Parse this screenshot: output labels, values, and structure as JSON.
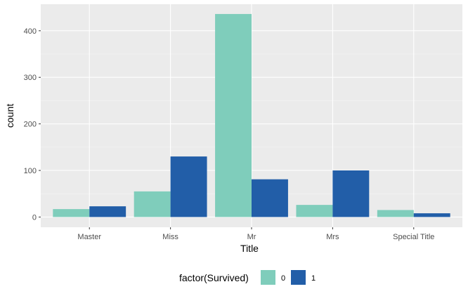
{
  "chart_data": {
    "type": "bar",
    "title": "",
    "xlabel": "Title",
    "ylabel": "count",
    "categories": [
      "Master",
      "Miss",
      "Mr",
      "Mrs",
      "Special Title"
    ],
    "series": [
      {
        "name": "0",
        "values": [
          17,
          55,
          436,
          26,
          15
        ],
        "color": "#7FCDBB"
      },
      {
        "name": "1",
        "values": [
          23,
          130,
          81,
          100,
          8
        ],
        "color": "#225EA8"
      }
    ],
    "yticks": [
      0,
      100,
      200,
      300,
      400
    ],
    "ylim": [
      -22,
      457
    ],
    "grid": true,
    "legend": {
      "title": "factor(Survived)",
      "position": "bottom"
    },
    "colors": {
      "panel": "#EBEBEB",
      "grid_major": "#FFFFFF",
      "grid_minor": "#F5F5F5"
    }
  }
}
